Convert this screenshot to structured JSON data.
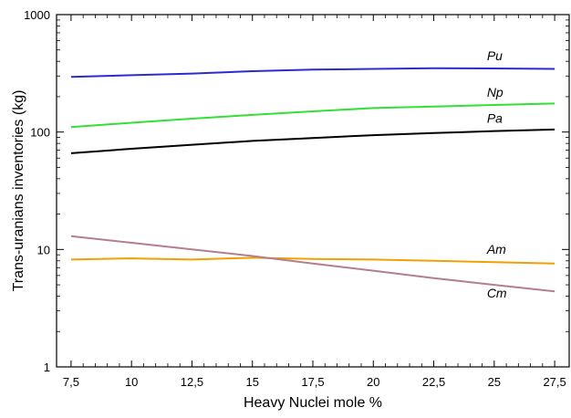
{
  "chart_data": {
    "type": "line",
    "xlabel": "Heavy Nuclei mole %",
    "ylabel": "Trans-uranians inventories (kg)",
    "y_scale": "log",
    "ylim": [
      1,
      1000
    ],
    "xlim": [
      6.9,
      28.1
    ],
    "x_ticks": [
      7.5,
      10,
      12.5,
      15,
      17.5,
      20,
      22.5,
      25,
      27.5
    ],
    "x_tick_labels": [
      "7,5",
      "10",
      "12,5",
      "15",
      "17,5",
      "20",
      "22,5",
      "25",
      "27,5"
    ],
    "y_ticks": [
      1,
      10,
      100,
      1000
    ],
    "y_tick_labels": [
      "1",
      "10",
      "100",
      "1000"
    ],
    "grid": false,
    "series": [
      {
        "name": "Pu",
        "color": "#2b2bd0",
        "x": [
          7.5,
          10,
          12.5,
          15,
          17.5,
          20,
          22.5,
          25,
          27.5
        ],
        "values": [
          295,
          305,
          315,
          330,
          340,
          345,
          350,
          348,
          345
        ]
      },
      {
        "name": "Np",
        "color": "#33e033",
        "x": [
          7.5,
          10,
          12.5,
          15,
          17.5,
          20,
          22.5,
          25,
          27.5
        ],
        "values": [
          110,
          120,
          130,
          140,
          150,
          160,
          165,
          170,
          175
        ]
      },
      {
        "name": "Pa",
        "color": "#000000",
        "x": [
          7.5,
          10,
          12.5,
          15,
          17.5,
          20,
          22.5,
          25,
          27.5
        ],
        "values": [
          66,
          72,
          78,
          84,
          89,
          94,
          98,
          102,
          105
        ]
      },
      {
        "name": "Am",
        "color": "#f0a000",
        "x": [
          7.5,
          10,
          12.5,
          15,
          17.5,
          20,
          22.5,
          25,
          27.5
        ],
        "values": [
          8.2,
          8.4,
          8.2,
          8.5,
          8.3,
          8.2,
          8.0,
          7.8,
          7.6
        ]
      },
      {
        "name": "Cm",
        "color": "#b47f8c",
        "x": [
          7.5,
          10,
          12.5,
          15,
          17.5,
          20,
          22.5,
          25,
          27.5
        ],
        "values": [
          13,
          11.4,
          10,
          8.8,
          7.6,
          6.6,
          5.7,
          5.0,
          4.4
        ]
      }
    ]
  }
}
